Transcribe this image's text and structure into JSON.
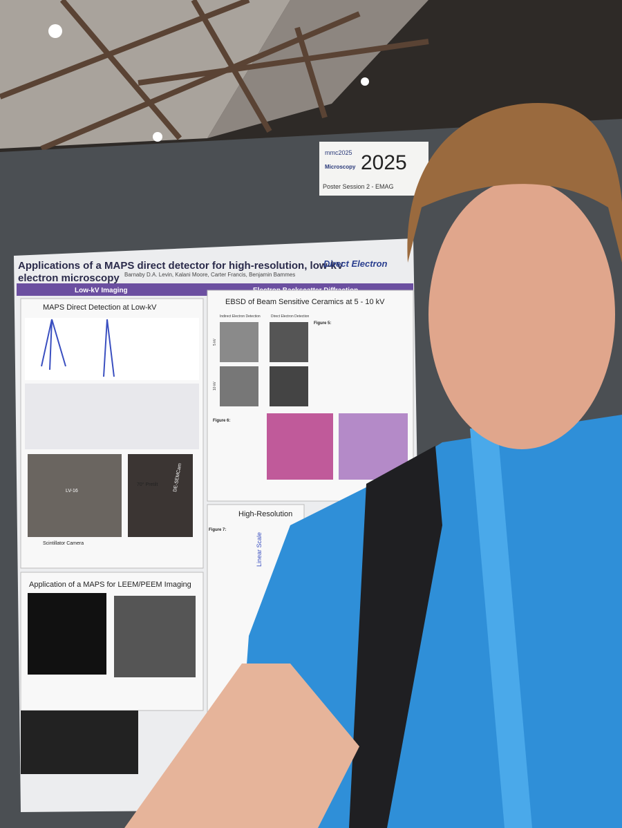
{
  "sign": {
    "logo": "mmc2025",
    "logo_sub": "Microscopy",
    "year": "2025",
    "session": "Poster Session 2 - EMAG"
  },
  "poster": {
    "title_line1": "Applications of a MAPS direct detector for high-resolution, low-kV",
    "title_line2": "electron microscopy",
    "authors": "Barnaby D.A. Levin, Kalani Moore, Carter Francis, Benjamin Bammes",
    "company": "Direct Electron",
    "band_left": "Low-kV Imaging",
    "band_right": "Electron Backscatter Diffraction",
    "panel_1": "MAPS Direct Detection at Low-kV",
    "panel_2": "EBSD of Beam Sensitive Ceramics at 5 - 10 kV",
    "panel_3": "Application of a MAPS for LEEM/PEEM Imaging",
    "panel_4": "High-Resolution",
    "indirect": "Indirect Electron Detection",
    "direct": "Direct Electron Detection",
    "kv5": "5 kV",
    "kv10": "10 kV",
    "fig5": "Figure 5:",
    "fig6": "Figure 6:",
    "fig7": "Figure 7:",
    "scint": "Scintillator Camera",
    "pretilt": "70° Pretilt",
    "lv16": "LV-16",
    "semcam": "DE-SEMCam",
    "linear": "Linear Scale"
  }
}
